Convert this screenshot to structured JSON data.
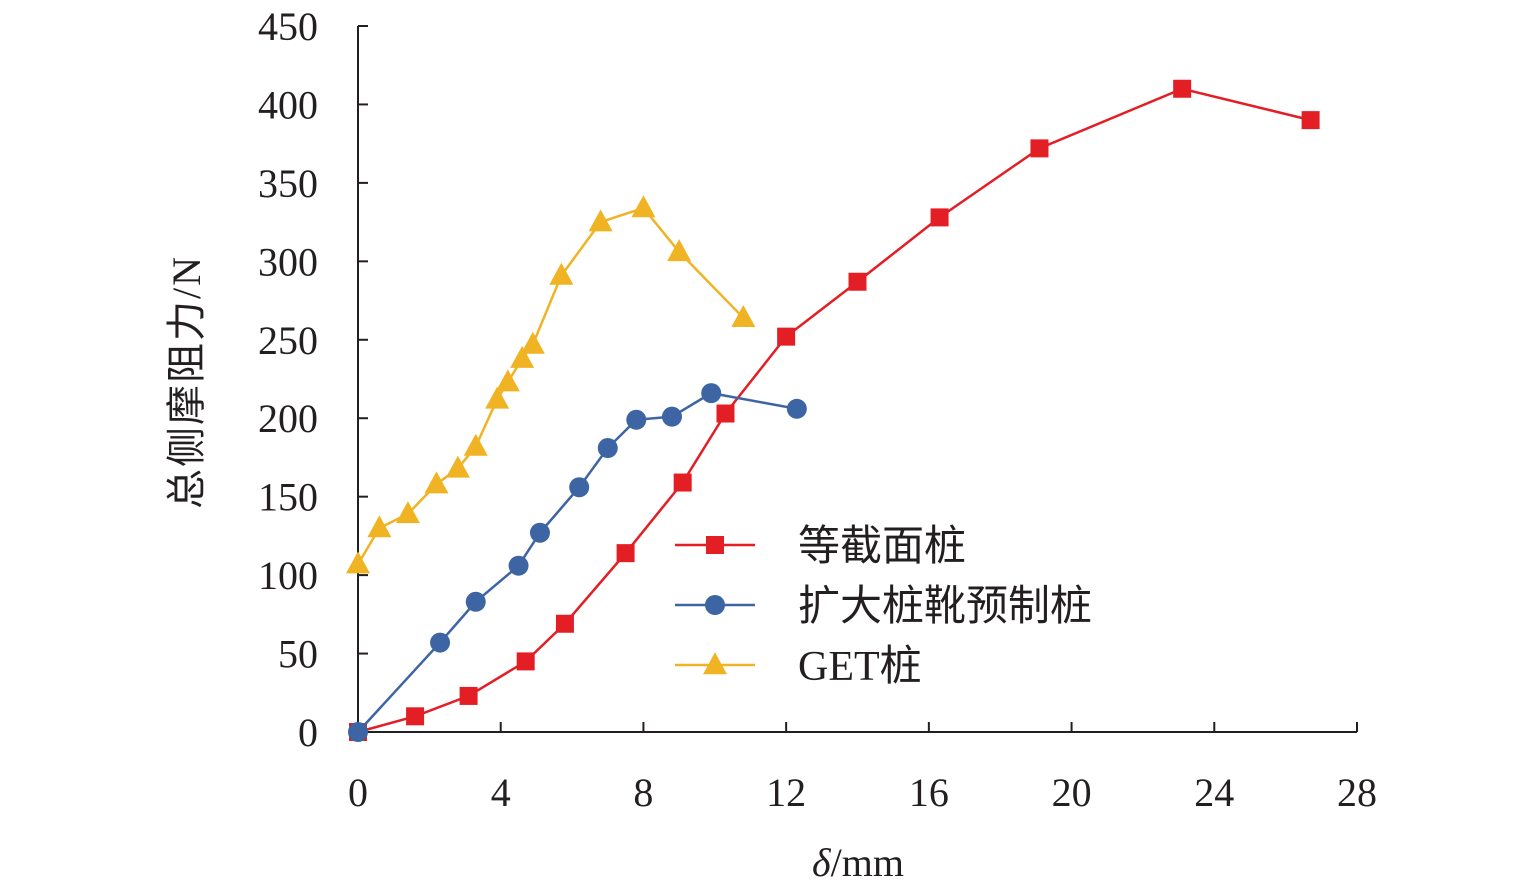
{
  "chart_data": {
    "type": "line",
    "xlabel_symbol": "δ",
    "xlabel_unit": "/mm",
    "ylabel": "总侧摩阻力/N",
    "xlim": [
      0,
      28
    ],
    "ylim": [
      0,
      450
    ],
    "xticks": [
      0,
      4,
      8,
      12,
      16,
      20,
      24,
      28
    ],
    "yticks": [
      0,
      50,
      100,
      150,
      200,
      250,
      300,
      350,
      400,
      450
    ],
    "grid": false,
    "legend_position": "lower-right",
    "series": [
      {
        "name": "等截面桩",
        "color": "#e31e24",
        "marker": "square",
        "x": [
          0,
          1.6,
          3.1,
          4.7,
          5.8,
          7.5,
          9.1,
          10.3,
          12.0,
          14.0,
          16.3,
          19.1,
          23.1,
          26.7
        ],
        "y": [
          0,
          10,
          23,
          45,
          69,
          114,
          159,
          203,
          252,
          287,
          328,
          372,
          410,
          390
        ]
      },
      {
        "name": "扩大桩靴预制桩",
        "color": "#3e65a3",
        "marker": "circle",
        "x": [
          0,
          2.3,
          3.3,
          4.5,
          5.1,
          6.2,
          7.0,
          7.8,
          8.8,
          9.9,
          12.3
        ],
        "y": [
          0,
          57,
          83,
          106,
          127,
          156,
          181,
          199,
          201,
          216,
          206
        ]
      },
      {
        "name": "GET桩",
        "color": "#f0b323",
        "marker": "triangle",
        "x": [
          0,
          0.6,
          1.4,
          2.2,
          2.8,
          3.3,
          3.9,
          4.2,
          4.6,
          4.9,
          5.7,
          6.8,
          8.0,
          9.0,
          10.8
        ],
        "y": [
          107,
          130,
          139,
          158,
          168,
          182,
          212,
          223,
          238,
          247,
          291,
          325,
          334,
          306,
          264
        ]
      }
    ]
  }
}
